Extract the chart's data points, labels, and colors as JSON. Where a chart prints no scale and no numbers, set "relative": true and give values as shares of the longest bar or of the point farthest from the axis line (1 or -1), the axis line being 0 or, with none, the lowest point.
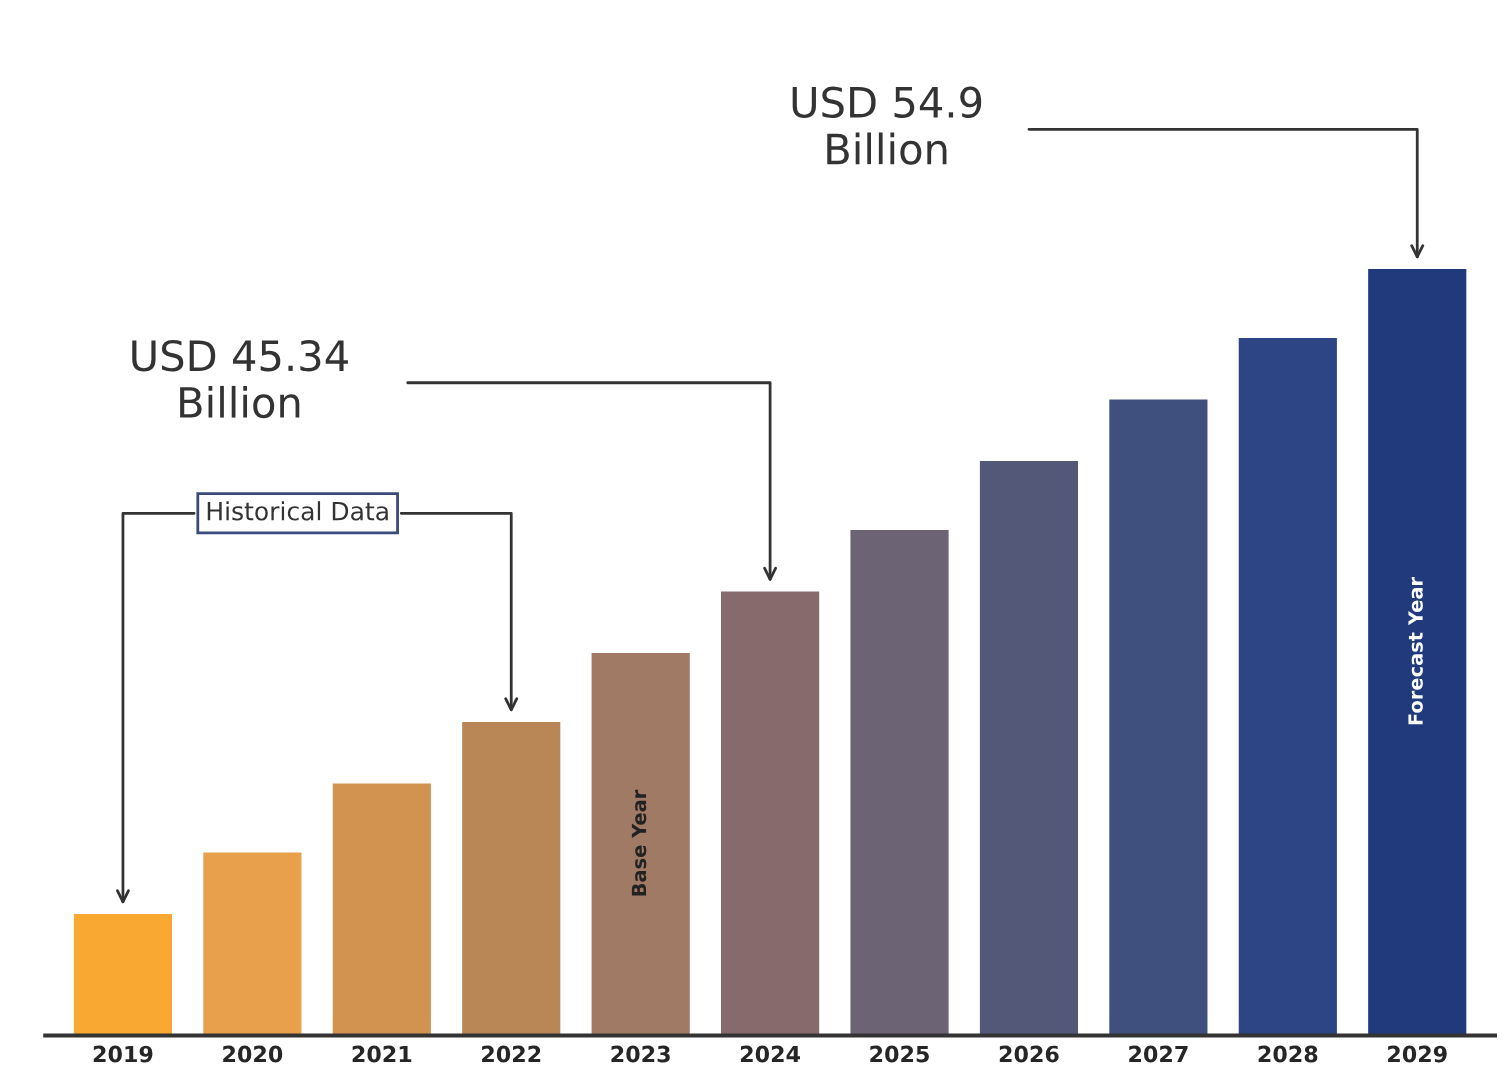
{
  "chart_data": {
    "type": "bar",
    "relative": true,
    "categories": [
      "2019",
      "2020",
      "2021",
      "2022",
      "2023",
      "2024",
      "2025",
      "2026",
      "2027",
      "2028",
      "2029"
    ],
    "values": [
      0.16,
      0.24,
      0.33,
      0.41,
      0.5,
      0.58,
      0.66,
      0.75,
      0.83,
      0.91,
      1
    ],
    "colors": [
      "#f9a932",
      "#e8a04c",
      "#d39350",
      "#b98756",
      "#a07a64",
      "#876a6c",
      "#6c6374",
      "#535878",
      "#40507e",
      "#2d4584",
      "#213a7c"
    ],
    "annotations": [
      "Historical Data",
      "Base Year",
      "USD 45.34\nBillion",
      "USD 54.9\nBillion",
      "Forecast Year"
    ]
  }
}
